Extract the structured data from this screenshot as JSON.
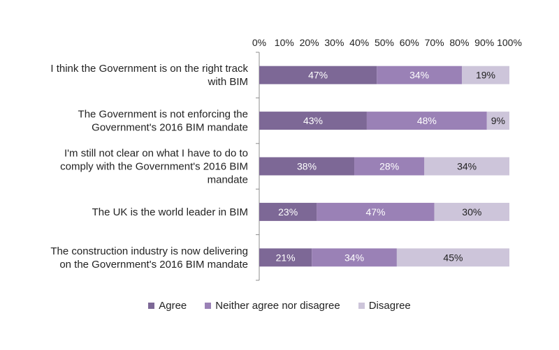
{
  "chart_data": {
    "type": "bar",
    "orientation": "horizontal",
    "stacked": true,
    "title": "",
    "xlim": [
      0,
      100
    ],
    "x_ticks": [
      "0%",
      "10%",
      "20%",
      "30%",
      "40%",
      "50%",
      "60%",
      "70%",
      "80%",
      "90%",
      "100%"
    ],
    "x_tick_position": "top",
    "categories": [
      [
        "I think the Government is on the right track",
        "with BIM"
      ],
      [
        "The Government is not enforcing the",
        "Government's 2016 BIM mandate"
      ],
      [
        "I'm still not clear on what I have to do to",
        "comply with the Government's 2016 BIM",
        "mandate"
      ],
      [
        "The UK is the world leader in BIM"
      ],
      [
        "The construction industry is now delivering",
        "on the Government's 2016 BIM mandate"
      ]
    ],
    "series": [
      {
        "name": "Agree",
        "color": "#7d6896",
        "label_color": "#ffffff",
        "values": [
          47,
          43,
          38,
          23,
          21
        ],
        "labels": [
          "47%",
          "43%",
          "38%",
          "23%",
          "21%"
        ]
      },
      {
        "name": "Neither agree nor disagree",
        "color": "#9a81b6",
        "label_color": "#ffffff",
        "values": [
          34,
          48,
          28,
          47,
          34
        ],
        "labels": [
          "34%",
          "48%",
          "28%",
          "47%",
          "34%"
        ]
      },
      {
        "name": "Disagree",
        "color": "#cdc5da",
        "label_color": "#222222",
        "values": [
          19,
          9,
          34,
          30,
          45
        ],
        "labels": [
          "19%",
          "9%",
          "34%",
          "30%",
          "45%"
        ]
      }
    ],
    "legend_position": "bottom",
    "grid": false
  }
}
